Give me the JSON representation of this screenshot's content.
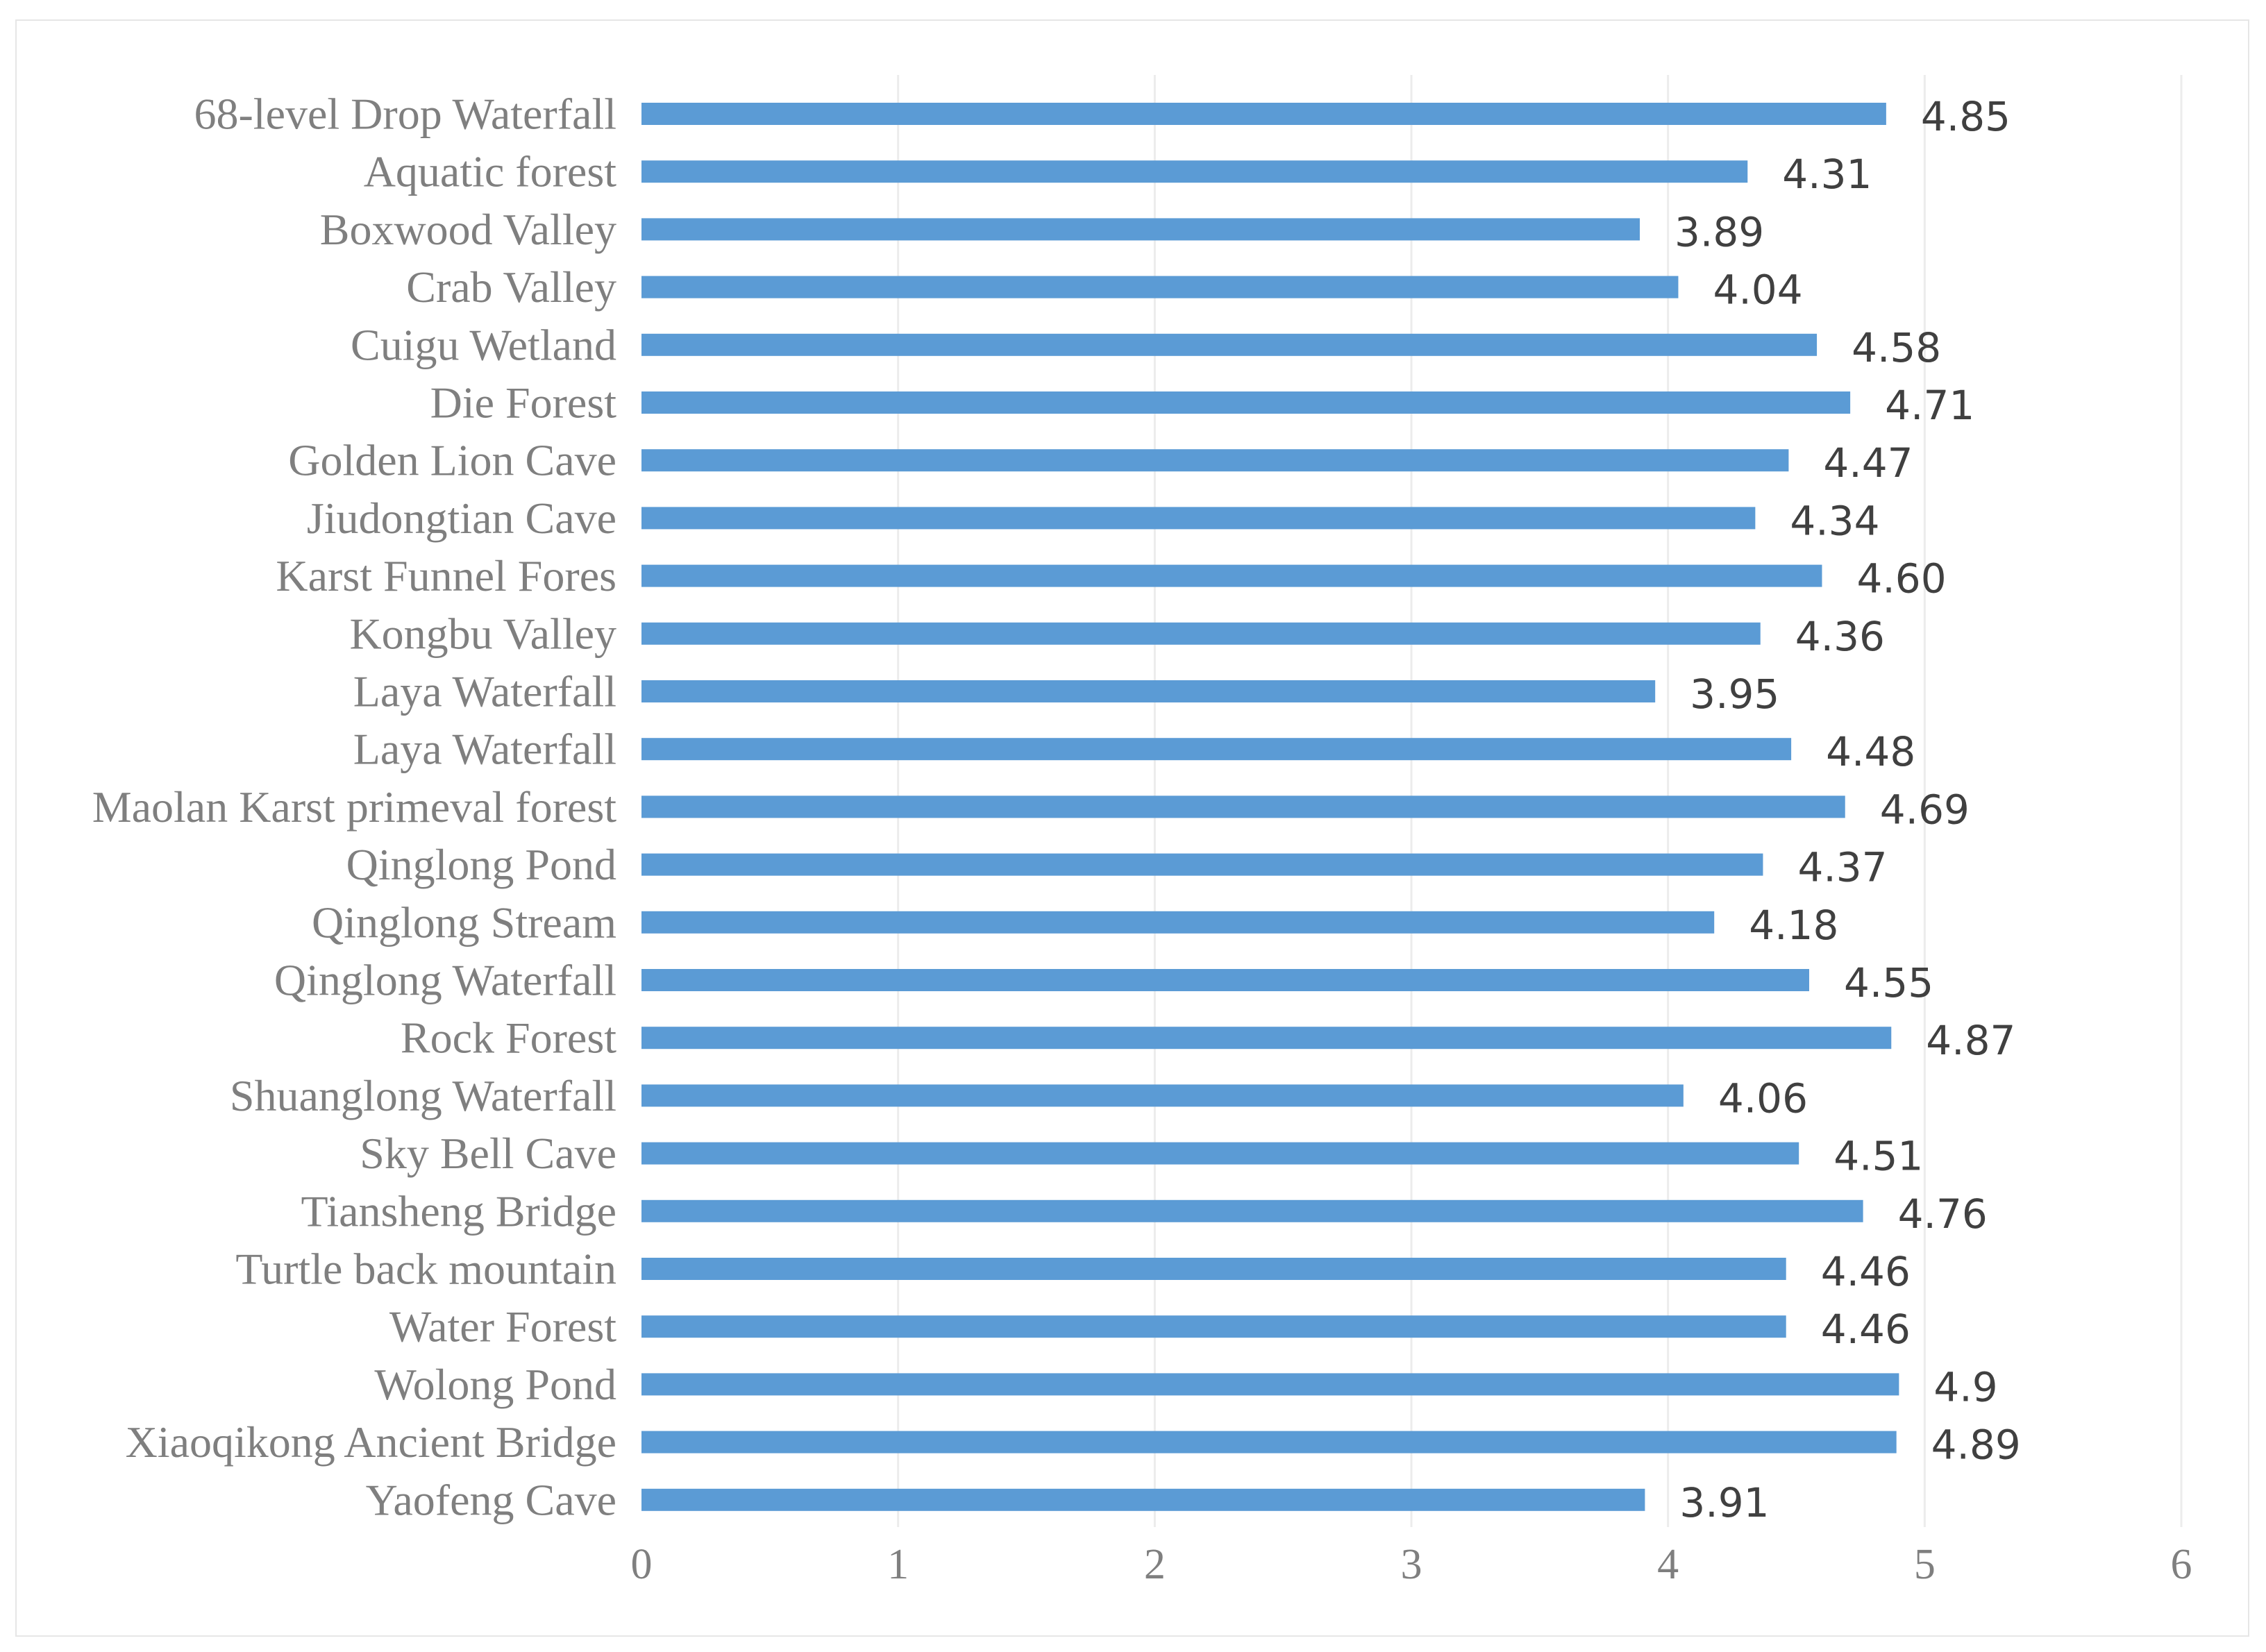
{
  "chart_data": {
    "type": "bar",
    "orientation": "horizontal",
    "categories": [
      "68-level Drop Waterfall",
      "Aquatic forest",
      "Boxwood Valley",
      "Crab Valley",
      "Cuigu Wetland",
      "Die Forest",
      "Golden Lion Cave",
      "Jiudongtian Cave",
      "Karst Funnel Fores",
      "Kongbu Valley",
      "Laya Waterfall",
      "Laya Waterfall",
      "Maolan Karst primeval forest",
      "Qinglong Pond",
      "Qinglong Stream",
      "Qinglong Waterfall",
      "Rock Forest",
      "Shuanglong Waterfall",
      "Sky Bell Cave",
      "Tiansheng Bridge",
      "Turtle back mountain",
      "Water Forest",
      "Wolong Pond",
      "Xiaoqikong Ancient Bridge",
      "Yaofeng Cave"
    ],
    "values": [
      4.85,
      4.31,
      3.89,
      4.04,
      4.58,
      4.71,
      4.47,
      4.34,
      4.6,
      4.36,
      3.95,
      4.48,
      4.69,
      4.37,
      4.18,
      4.55,
      4.87,
      4.06,
      4.51,
      4.76,
      4.46,
      4.46,
      4.9,
      4.89,
      3.91
    ],
    "value_labels": [
      "4.85",
      "4.31",
      "3.89",
      "4.04",
      "4.58",
      "4.71",
      "4.47",
      "4.34",
      "4.60",
      "4.36",
      "3.95",
      "4.48",
      "4.69",
      "4.37",
      "4.18",
      "4.55",
      "4.87",
      "4.06",
      "4.51",
      "4.76",
      "4.46",
      "4.46",
      "4.9",
      "4.89",
      "3.91"
    ],
    "xlim": [
      0,
      6
    ],
    "xticks": [
      "0",
      "1",
      "2",
      "3",
      "4",
      "5",
      "6"
    ],
    "title": "",
    "xlabel": "",
    "ylabel": "",
    "grid": true,
    "legend": false,
    "bar_color": "#5b9bd5"
  }
}
